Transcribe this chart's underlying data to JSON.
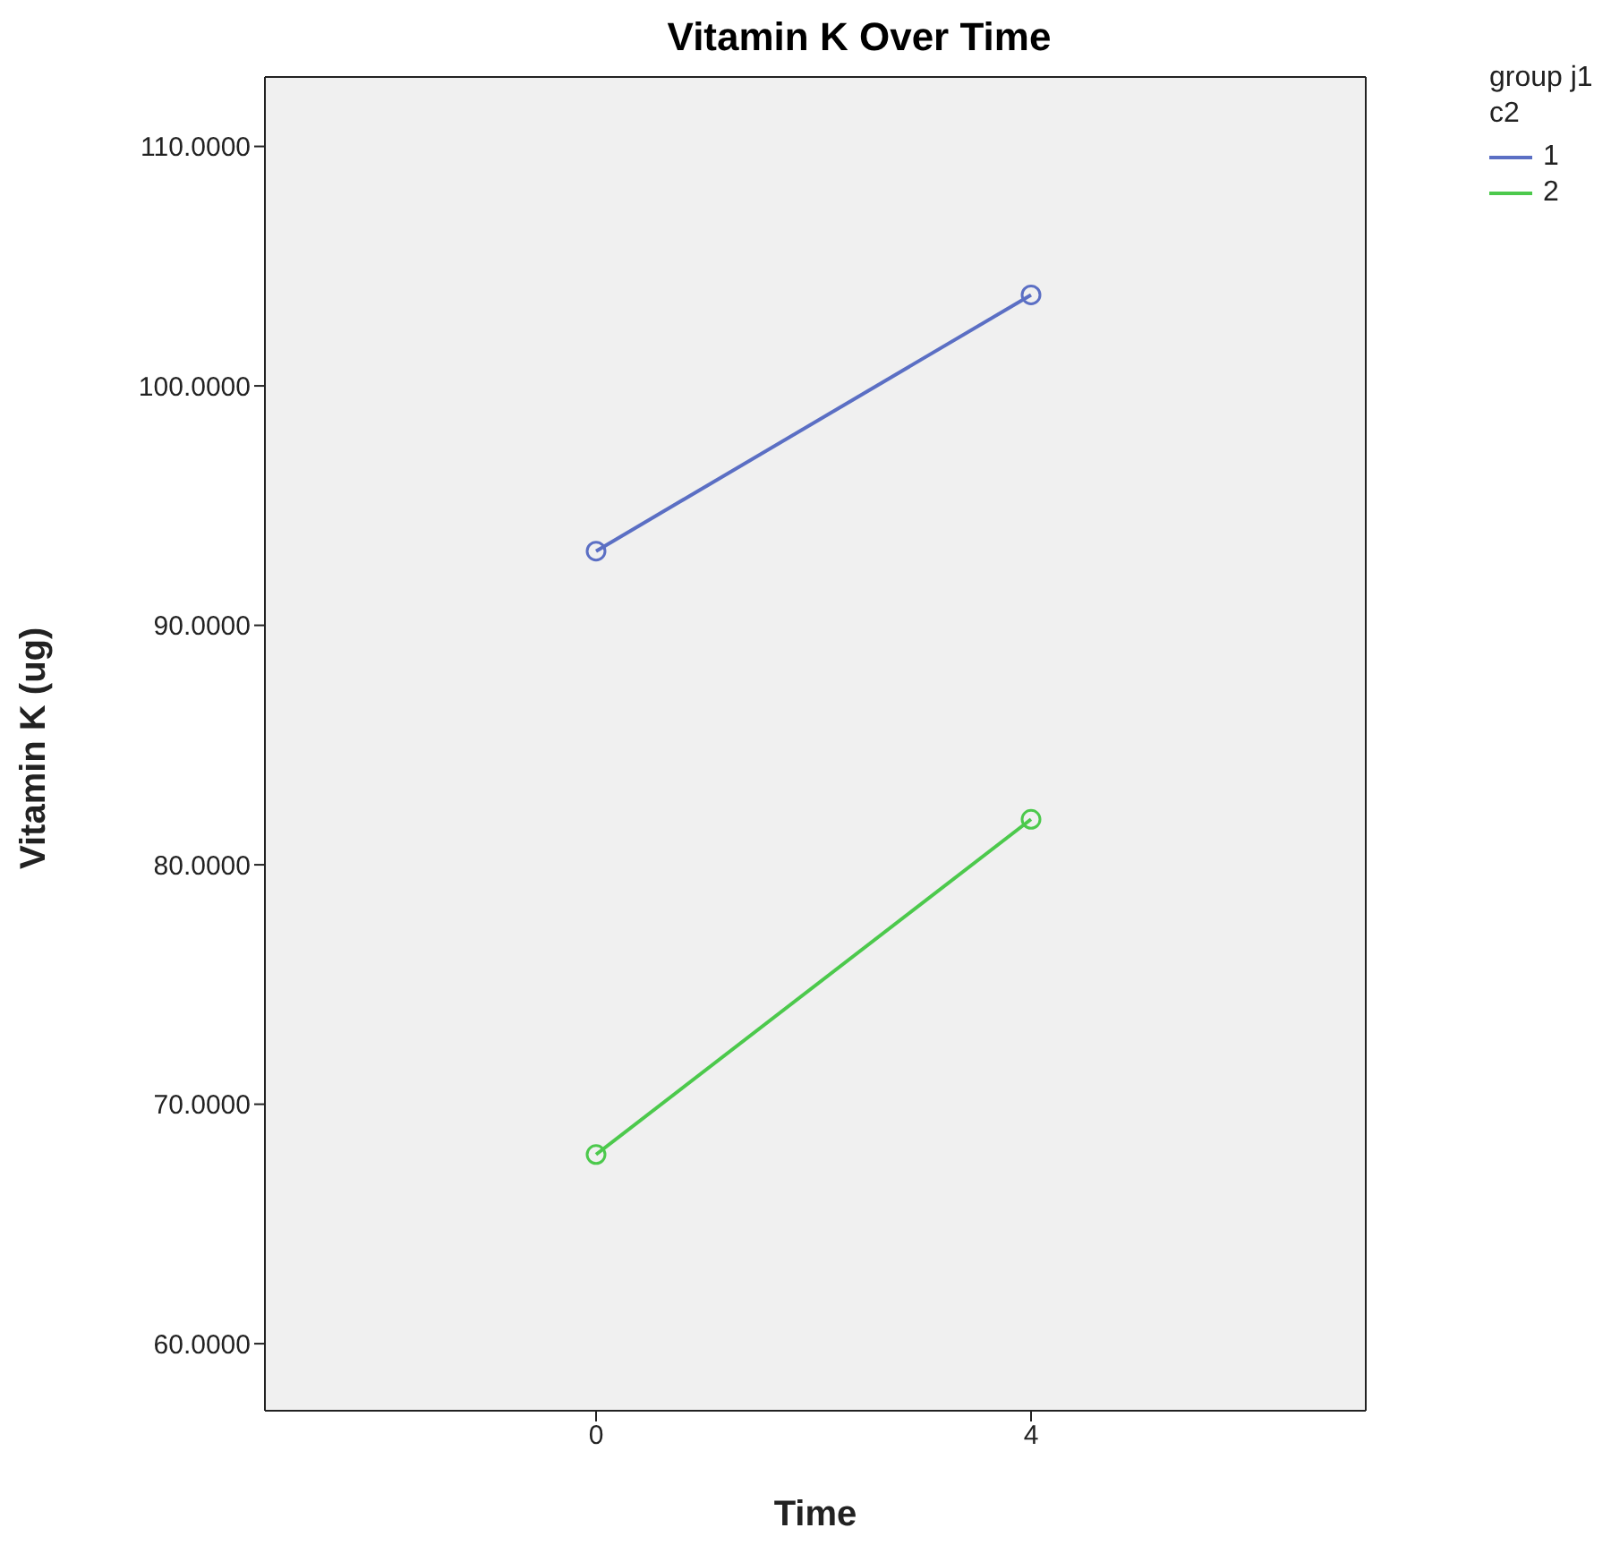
{
  "chart_data": {
    "type": "line",
    "title": "Vitamin K Over Time",
    "xlabel": "Time",
    "ylabel": "Vitamin K (ug)",
    "legend_title": "group j1 c2",
    "categories": [
      "0",
      "4"
    ],
    "series": [
      {
        "name": "1",
        "color": "#5b6fc4",
        "values": [
          93.1,
          103.8
        ]
      },
      {
        "name": "2",
        "color": "#4cc94c",
        "values": [
          67.9,
          81.9
        ]
      }
    ],
    "ylim": [
      57.2,
      112.9
    ],
    "yticks": [
      {
        "value": 60,
        "label": "60.0000"
      },
      {
        "value": 70,
        "label": "70.0000"
      },
      {
        "value": 80,
        "label": "80.0000"
      },
      {
        "value": 90,
        "label": "90.0000"
      },
      {
        "value": 100,
        "label": "100.0000"
      },
      {
        "value": 110,
        "label": "110.0000"
      }
    ],
    "legend": "top right",
    "marker": "circle",
    "line_style": "solid"
  }
}
